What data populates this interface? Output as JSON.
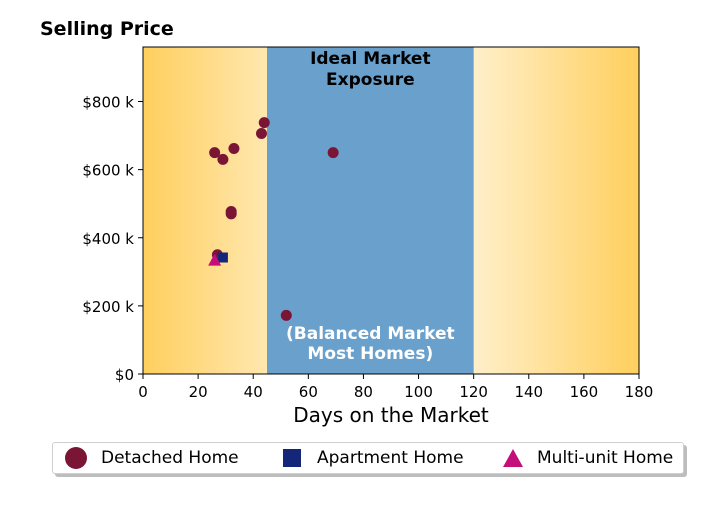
{
  "chart_data": {
    "type": "scatter",
    "title": "Selling Price",
    "xlabel": "Days on the Market",
    "ylabel": "",
    "xlim": [
      0,
      180
    ],
    "ylim": [
      0,
      960
    ],
    "x_ticks": [
      0,
      20,
      40,
      60,
      80,
      100,
      120,
      140,
      160,
      180
    ],
    "y_ticks": [
      0,
      200,
      400,
      600,
      800
    ],
    "y_tick_labels": [
      "$0",
      "$200 k",
      "$400 k",
      "$600 k",
      "$800 k"
    ],
    "region": {
      "x_from": 45,
      "x_to": 120,
      "color": "#6aa0cc",
      "label_top": "Ideal Market\nExposure",
      "label_bottom": "(Balanced Market\nMost Homes)"
    },
    "background_gradient": {
      "edge_color": "#ffcf5e",
      "center_color": "#ffffff"
    },
    "series": [
      {
        "name": "Detached Home",
        "marker": "circle",
        "color": "#7b1535",
        "points": [
          {
            "x": 26,
            "y": 650
          },
          {
            "x": 29,
            "y": 630
          },
          {
            "x": 33,
            "y": 662
          },
          {
            "x": 44,
            "y": 738
          },
          {
            "x": 43,
            "y": 706
          },
          {
            "x": 32,
            "y": 477
          },
          {
            "x": 32,
            "y": 470
          },
          {
            "x": 27,
            "y": 350
          },
          {
            "x": 69,
            "y": 650
          },
          {
            "x": 52,
            "y": 172
          }
        ]
      },
      {
        "name": "Apartment Home",
        "marker": "square",
        "color": "#13267a",
        "points": [
          {
            "x": 29,
            "y": 342
          }
        ]
      },
      {
        "name": "Multi-unit Home",
        "marker": "triangle",
        "color": "#c40f7a",
        "points": [
          {
            "x": 26,
            "y": 333
          }
        ]
      }
    ],
    "legend": {
      "position": "bottom",
      "items": [
        "Detached Home",
        "Apartment Home",
        "Multi-unit Home"
      ]
    }
  }
}
